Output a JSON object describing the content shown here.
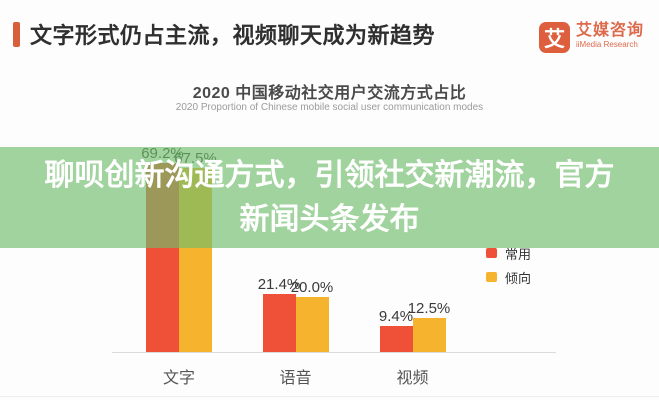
{
  "header": {
    "title": "文字形式仍占主流，视频聊天成为新趋势",
    "logo": {
      "badge_char": "艾",
      "brand_cn": "艾媒咨询",
      "brand_en": "iiMedia Research"
    }
  },
  "overlay": {
    "line1": "聊呗创新沟通方式，引领社交新潮流，官方",
    "line2": "新闻头条发布",
    "band_color": "rgba(112,190,107,0.66)"
  },
  "chart_data": {
    "type": "bar",
    "title": "2020 中国移动社交用户交流方式占比",
    "subtitle": "2020 Proportion of Chinese mobile social user communication modes",
    "categories": [
      "文字",
      "语音",
      "视频"
    ],
    "series": [
      {
        "name": "常用",
        "color": "#ee5138",
        "values": [
          69.2,
          21.4,
          9.4
        ]
      },
      {
        "name": "倾向",
        "color": "#f6b42e",
        "values": [
          67.5,
          20.0,
          12.5
        ]
      }
    ],
    "value_label_format": "percent",
    "ylim": [
      0,
      75
    ],
    "grid": false,
    "legend_position": "right"
  },
  "colors": {
    "accent_orange": "#d95f3a",
    "brand_orange": "#dd6a4a",
    "bar_red": "#ee5138",
    "bar_yellow": "#f6b42e",
    "overlay_green": "rgba(112,190,107,0.66)"
  }
}
